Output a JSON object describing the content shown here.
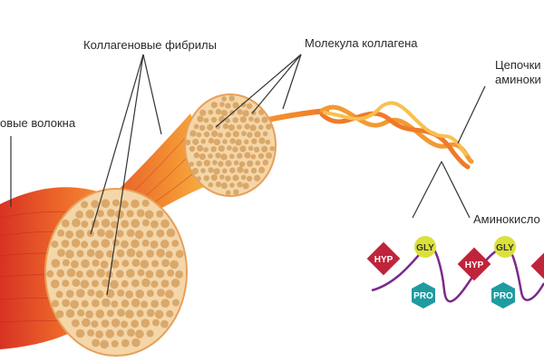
{
  "labels": {
    "fibers": "овые волокна",
    "fibrils": "Коллагеновые фибрилы",
    "molecule": "Молекула коллагена",
    "chains_line1": "Цепочки",
    "chains_line2": "аминоки",
    "amino": "Аминокисло"
  },
  "amino_units": [
    {
      "hyp": "HYP",
      "gly": "GLY",
      "pro": "PRO"
    },
    {
      "hyp": "HYP",
      "gly": "GLY",
      "pro": "PRO"
    }
  ],
  "colors": {
    "hyp": "#c0243a",
    "gly": "#dce03a",
    "pro": "#1e9ca0",
    "chain": "#7a2a8c",
    "fiber_dark": "#e0402a",
    "fiber_mid": "#f07a2a",
    "fiber_light": "#f6b040",
    "cross_section": "#f4d6a8",
    "fibril_dot": "#d9a86a"
  }
}
